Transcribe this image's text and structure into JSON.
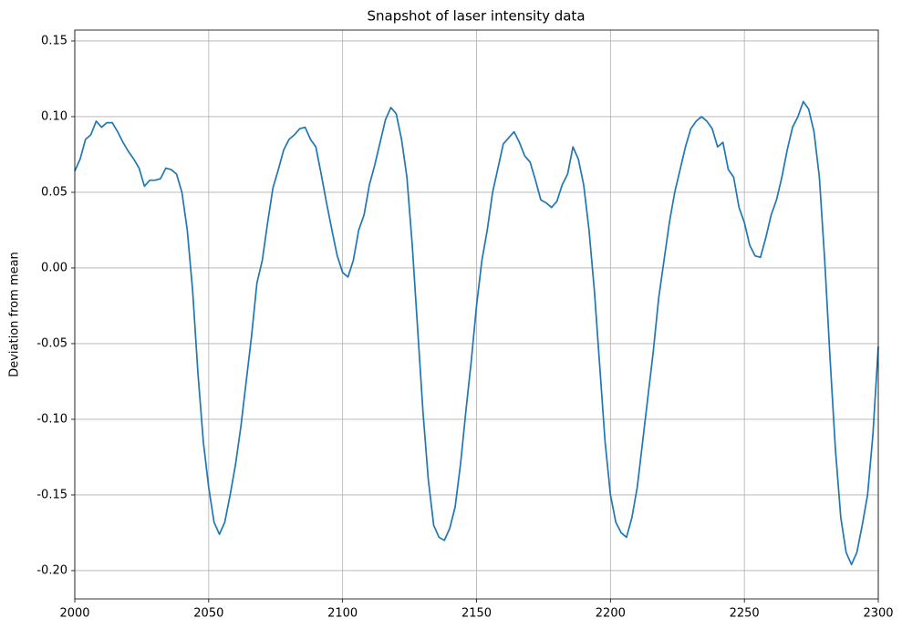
{
  "chart_data": {
    "type": "line",
    "title": "Snapshot of laser intensity data",
    "y_label": "Deviation from mean",
    "x": [
      2000,
      2002,
      2004,
      2006,
      2008,
      2010,
      2012,
      2014,
      2016,
      2018,
      2020,
      2022,
      2024,
      2026,
      2028,
      2030,
      2032,
      2034,
      2036,
      2038,
      2040,
      2042,
      2044,
      2046,
      2048,
      2050,
      2052,
      2054,
      2056,
      2058,
      2060,
      2062,
      2064,
      2066,
      2068,
      2070,
      2072,
      2074,
      2076,
      2078,
      2080,
      2082,
      2084,
      2086,
      2088,
      2090,
      2092,
      2094,
      2096,
      2098,
      2100,
      2102,
      2104,
      2106,
      2108,
      2110,
      2112,
      2114,
      2116,
      2118,
      2120,
      2122,
      2124,
      2126,
      2128,
      2130,
      2132,
      2134,
      2136,
      2138,
      2140,
      2142,
      2144,
      2146,
      2148,
      2150,
      2152,
      2154,
      2156,
      2158,
      2160,
      2162,
      2164,
      2166,
      2168,
      2170,
      2172,
      2174,
      2176,
      2178,
      2180,
      2182,
      2184,
      2186,
      2188,
      2190,
      2192,
      2194,
      2196,
      2198,
      2200,
      2202,
      2204,
      2206,
      2208,
      2210,
      2212,
      2214,
      2216,
      2218,
      2220,
      2222,
      2224,
      2226,
      2228,
      2230,
      2232,
      2234,
      2236,
      2238,
      2240,
      2242,
      2244,
      2246,
      2248,
      2250,
      2252,
      2254,
      2256,
      2258,
      2260,
      2262,
      2264,
      2266,
      2268,
      2270,
      2272,
      2274,
      2276,
      2278,
      2280,
      2282,
      2284,
      2286,
      2288,
      2290,
      2292,
      2294,
      2296,
      2298,
      2300
    ],
    "series": [
      {
        "color": "#1f77b4",
        "values": [
          0.064,
          0.072,
          0.085,
          0.088,
          0.097,
          0.093,
          0.096,
          0.096,
          0.09,
          0.083,
          0.077,
          0.072,
          0.066,
          0.054,
          0.058,
          0.058,
          0.059,
          0.066,
          0.065,
          0.062,
          0.05,
          0.025,
          -0.015,
          -0.07,
          -0.115,
          -0.145,
          -0.168,
          -0.176,
          -0.168,
          -0.15,
          -0.13,
          -0.105,
          -0.075,
          -0.045,
          -0.01,
          0.005,
          0.03,
          0.053,
          0.065,
          0.078,
          0.085,
          0.088,
          0.092,
          0.093,
          0.085,
          0.08,
          0.062,
          0.043,
          0.025,
          0.008,
          -0.003,
          -0.006,
          0.005,
          0.025,
          0.035,
          0.055,
          0.068,
          0.083,
          0.098,
          0.106,
          0.102,
          0.085,
          0.06,
          0.015,
          -0.04,
          -0.095,
          -0.14,
          -0.17,
          -0.178,
          -0.18,
          -0.172,
          -0.158,
          -0.13,
          -0.095,
          -0.062,
          -0.025,
          0.005,
          0.025,
          0.05,
          0.066,
          0.082,
          0.086,
          0.09,
          0.083,
          0.074,
          0.07,
          0.058,
          0.045,
          0.043,
          0.04,
          0.044,
          0.055,
          0.062,
          0.08,
          0.072,
          0.055,
          0.025,
          -0.015,
          -0.065,
          -0.115,
          -0.15,
          -0.168,
          -0.175,
          -0.178,
          -0.165,
          -0.145,
          -0.115,
          -0.085,
          -0.055,
          -0.02,
          0.005,
          0.03,
          0.05,
          0.065,
          0.08,
          0.092,
          0.097,
          0.1,
          0.097,
          0.092,
          0.08,
          0.083,
          0.065,
          0.06,
          0.04,
          0.03,
          0.015,
          0.008,
          0.007,
          0.02,
          0.035,
          0.045,
          0.06,
          0.078,
          0.093,
          0.1,
          0.11,
          0.105,
          0.09,
          0.06,
          0.005,
          -0.06,
          -0.12,
          -0.165,
          -0.188,
          -0.196,
          -0.188,
          -0.17,
          -0.15,
          -0.11,
          -0.052
        ]
      }
    ],
    "xlim": [
      2000,
      2300
    ],
    "xticks": [
      2000,
      2050,
      2100,
      2150,
      2200,
      2250,
      2300
    ],
    "ylim": [
      -0.2187,
      0.1572
    ],
    "yticks": [
      {
        "value": -0.2,
        "label": "-0.20"
      },
      -0.15,
      {
        "value": -0.1,
        "label": "-0.10"
      },
      -0.05,
      {
        "value": 0,
        "label": "0.00"
      },
      0.05,
      {
        "value": 0.1,
        "label": "0.10"
      },
      0.15
    ],
    "grid": true
  }
}
